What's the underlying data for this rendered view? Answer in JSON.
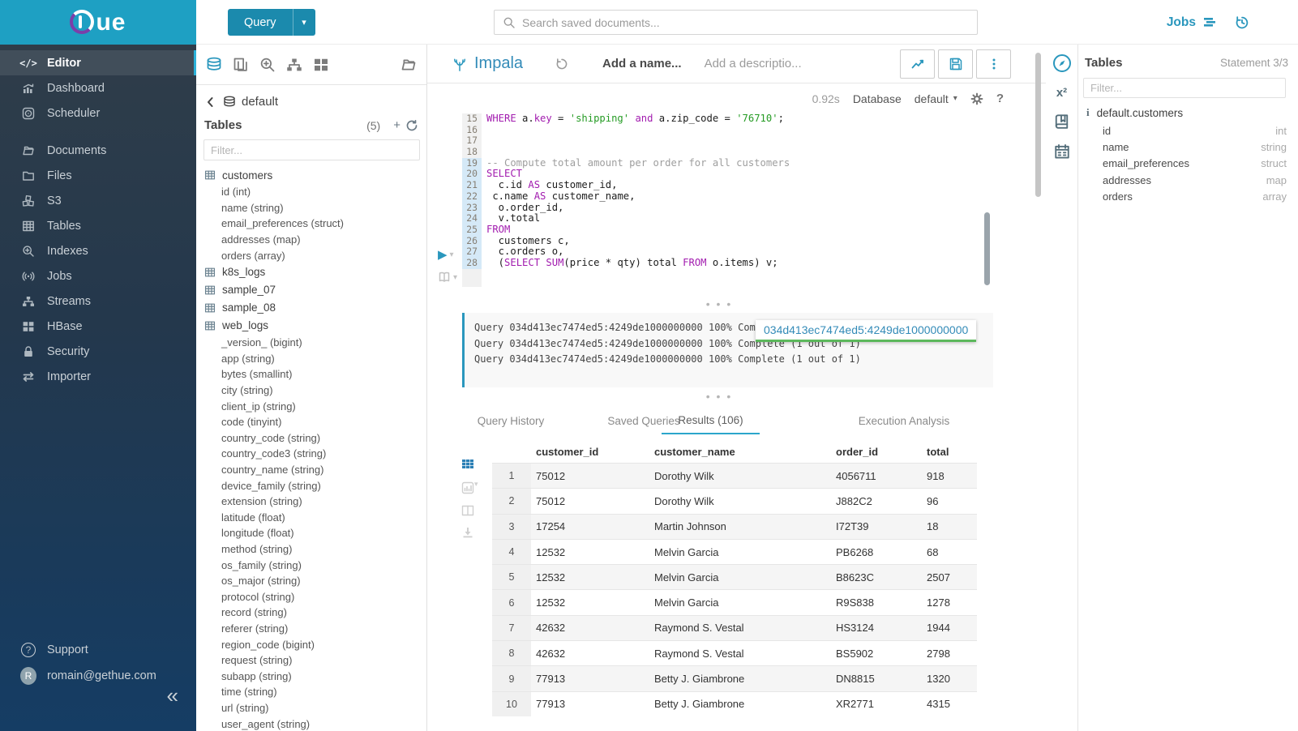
{
  "colors": {
    "brand_teal": "#1EA0C3",
    "link_blue": "#338bb8",
    "accent_icon": "#2A97BD",
    "keyword_purple": "#A21CAF",
    "string_green": "#259B24",
    "tab_underline": "#2ba6cb"
  },
  "topbar": {
    "logo_text": "ue",
    "query_button_label": "Query",
    "search_placeholder": "Search saved documents...",
    "jobs_label": "Jobs"
  },
  "sidebar": {
    "items": [
      {
        "label": "Editor"
      },
      {
        "label": "Dashboard"
      },
      {
        "label": "Scheduler"
      },
      {
        "label": "Documents"
      },
      {
        "label": "Files"
      },
      {
        "label": "S3"
      },
      {
        "label": "Tables"
      },
      {
        "label": "Indexes"
      },
      {
        "label": "Jobs"
      },
      {
        "label": "Streams"
      },
      {
        "label": "HBase"
      },
      {
        "label": "Security"
      },
      {
        "label": "Importer"
      }
    ],
    "support_label": "Support",
    "user_email": "romain@gethue.com",
    "collapse_glyph": "«"
  },
  "left_panel": {
    "database_name": "default",
    "tables_label": "Tables",
    "table_count": "(5)",
    "filter_placeholder": "Filter...",
    "tree": [
      {
        "kind": "table",
        "label": "customers"
      },
      {
        "kind": "col",
        "label": "id (int)"
      },
      {
        "kind": "col",
        "label": "name (string)"
      },
      {
        "kind": "col",
        "label": "email_preferences (struct)"
      },
      {
        "kind": "col",
        "label": "addresses (map)"
      },
      {
        "kind": "col",
        "label": "orders (array)"
      },
      {
        "kind": "table",
        "label": "k8s_logs"
      },
      {
        "kind": "table",
        "label": "sample_07"
      },
      {
        "kind": "table",
        "label": "sample_08"
      },
      {
        "kind": "table",
        "label": "web_logs"
      },
      {
        "kind": "col",
        "label": "_version_ (bigint)"
      },
      {
        "kind": "col",
        "label": "app (string)"
      },
      {
        "kind": "col",
        "label": "bytes (smallint)"
      },
      {
        "kind": "col",
        "label": "city (string)"
      },
      {
        "kind": "col",
        "label": "client_ip (string)"
      },
      {
        "kind": "col",
        "label": "code (tinyint)"
      },
      {
        "kind": "col",
        "label": "country_code (string)"
      },
      {
        "kind": "col",
        "label": "country_code3 (string)"
      },
      {
        "kind": "col",
        "label": "country_name (string)"
      },
      {
        "kind": "col",
        "label": "device_family (string)"
      },
      {
        "kind": "col",
        "label": "extension (string)"
      },
      {
        "kind": "col",
        "label": "latitude (float)"
      },
      {
        "kind": "col",
        "label": "longitude (float)"
      },
      {
        "kind": "col",
        "label": "method (string)"
      },
      {
        "kind": "col",
        "label": "os_family (string)"
      },
      {
        "kind": "col",
        "label": "os_major (string)"
      },
      {
        "kind": "col",
        "label": "protocol (string)"
      },
      {
        "kind": "col",
        "label": "record (string)"
      },
      {
        "kind": "col",
        "label": "referer (string)"
      },
      {
        "kind": "col",
        "label": "region_code (bigint)"
      },
      {
        "kind": "col",
        "label": "request (string)"
      },
      {
        "kind": "col",
        "label": "subapp (string)"
      },
      {
        "kind": "col",
        "label": "time (string)"
      },
      {
        "kind": "col",
        "label": "url (string)"
      },
      {
        "kind": "col",
        "label": "user_agent (string)"
      }
    ]
  },
  "editor": {
    "engine": "Impala",
    "name_placeholder": "Add a name...",
    "description_placeholder": "Add a descriptio...",
    "execution_time": "0.92s",
    "database_label": "Database",
    "database_value": "default",
    "play_glyph": "▶",
    "code_lines": [
      {
        "n": 15,
        "hl": false,
        "segs": [
          [
            "kw",
            "WHERE"
          ],
          [
            "t",
            " a."
          ],
          [
            "kw",
            "key"
          ],
          [
            "t",
            " = "
          ],
          [
            "s",
            "'shipping'"
          ],
          [
            "t",
            " "
          ],
          [
            "kw",
            "and"
          ],
          [
            "t",
            " a.zip_code = "
          ],
          [
            "s",
            "'76710'"
          ],
          [
            "t",
            ";"
          ]
        ]
      },
      {
        "n": 16,
        "hl": false,
        "segs": []
      },
      {
        "n": 17,
        "hl": false,
        "segs": []
      },
      {
        "n": 18,
        "hl": false,
        "segs": []
      },
      {
        "n": 19,
        "hl": true,
        "segs": [
          [
            "c",
            "-- Compute total amount per order for all customers"
          ]
        ]
      },
      {
        "n": 20,
        "hl": true,
        "segs": [
          [
            "kw",
            "SELECT"
          ]
        ]
      },
      {
        "n": 21,
        "hl": true,
        "segs": [
          [
            "t",
            "  c.id "
          ],
          [
            "kw",
            "AS"
          ],
          [
            "t",
            " customer_id,"
          ]
        ]
      },
      {
        "n": 22,
        "hl": true,
        "segs": [
          [
            "t",
            " c.name "
          ],
          [
            "kw",
            "AS"
          ],
          [
            "t",
            " customer_name,"
          ]
        ]
      },
      {
        "n": 23,
        "hl": true,
        "segs": [
          [
            "t",
            "  o.order_id,"
          ]
        ]
      },
      {
        "n": 24,
        "hl": true,
        "segs": [
          [
            "t",
            "  v.total"
          ]
        ]
      },
      {
        "n": 25,
        "hl": true,
        "segs": [
          [
            "kw",
            "FROM"
          ]
        ]
      },
      {
        "n": 26,
        "hl": true,
        "segs": [
          [
            "t",
            "  customers c,"
          ]
        ]
      },
      {
        "n": 27,
        "hl": true,
        "segs": [
          [
            "t",
            "  c.orders o,"
          ]
        ]
      },
      {
        "n": 28,
        "hl": true,
        "segs": [
          [
            "t",
            "  ("
          ],
          [
            "kw",
            "SELECT"
          ],
          [
            "t",
            " "
          ],
          [
            "kw",
            "SUM"
          ],
          [
            "t",
            "(price * qty) total "
          ],
          [
            "kw",
            "FROM"
          ],
          [
            "t",
            " o.items) v;"
          ]
        ]
      }
    ],
    "log_lines": [
      "Query 034d413ec7474ed5:4249de1000000000 100% Complete (1 out of 1)",
      "Query 034d413ec7474ed5:4249de1000000000 100% Complete (1 out of 1)",
      "Query 034d413ec7474ed5:4249de1000000000 100% Complete (1 out of 1)"
    ],
    "tooltip_text": "034d413ec7474ed5:4249de1000000000"
  },
  "tabs": [
    "Query History",
    "Saved Queries",
    "Results (106)",
    "Execution Analysis"
  ],
  "results": {
    "columns": [
      "customer_id",
      "customer_name",
      "order_id",
      "total"
    ],
    "rows": [
      {
        "index": 1,
        "cells": [
          "75012",
          "Dorothy Wilk",
          "4056711",
          "918"
        ]
      },
      {
        "index": 2,
        "cells": [
          "75012",
          "Dorothy Wilk",
          "J882C2",
          "96"
        ]
      },
      {
        "index": 3,
        "cells": [
          "17254",
          "Martin Johnson",
          "I72T39",
          "18"
        ]
      },
      {
        "index": 4,
        "cells": [
          "12532",
          "Melvin Garcia",
          "PB6268",
          "68"
        ]
      },
      {
        "index": 5,
        "cells": [
          "12532",
          "Melvin Garcia",
          "B8623C",
          "2507"
        ]
      },
      {
        "index": 6,
        "cells": [
          "12532",
          "Melvin Garcia",
          "R9S838",
          "1278"
        ]
      },
      {
        "index": 7,
        "cells": [
          "42632",
          "Raymond S. Vestal",
          "HS3124",
          "1944"
        ]
      },
      {
        "index": 8,
        "cells": [
          "42632",
          "Raymond S. Vestal",
          "BS5902",
          "2798"
        ]
      },
      {
        "index": 9,
        "cells": [
          "77913",
          "Betty J. Giambrone",
          "DN8815",
          "1320"
        ]
      },
      {
        "index": 10,
        "cells": [
          "77913",
          "Betty J. Giambrone",
          "XR2771",
          "4315"
        ]
      }
    ]
  },
  "right_panel": {
    "title": "Tables",
    "statement": "Statement 3/3",
    "filter_placeholder": "Filter...",
    "table_name": "default.customers",
    "columns": [
      {
        "name": "id",
        "type": "int"
      },
      {
        "name": "name",
        "type": "string"
      },
      {
        "name": "email_preferences",
        "type": "struct"
      },
      {
        "name": "addresses",
        "type": "map"
      },
      {
        "name": "orders",
        "type": "array"
      }
    ]
  }
}
